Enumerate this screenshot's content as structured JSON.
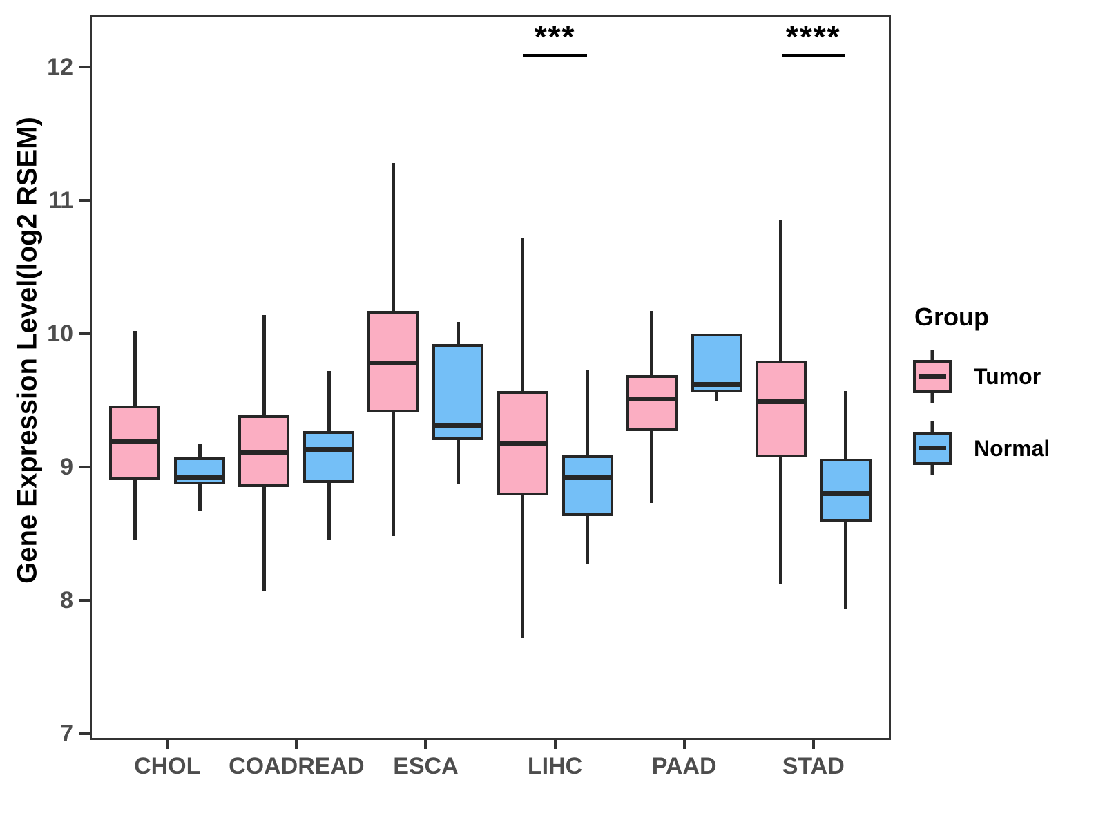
{
  "chart_data": {
    "type": "boxplot",
    "title": "",
    "xlabel": "",
    "ylabel": "Gene Expression Level(log2 RSEM)",
    "categories": [
      "CHOL",
      "COADREAD",
      "ESCA",
      "LIHC",
      "PAAD",
      "STAD"
    ],
    "y_ticks": [
      7,
      8,
      9,
      10,
      11,
      12
    ],
    "ylim": [
      6.95,
      12.39
    ],
    "grid": "off",
    "legend": {
      "title": "Group",
      "position": "right",
      "items": [
        {
          "label": "Tumor",
          "color": "#FBAEC2"
        },
        {
          "label": "Normal",
          "color": "#74BFF7"
        }
      ]
    },
    "series": [
      {
        "name": "Tumor",
        "color": "#FBAEC2",
        "boxes": [
          {
            "category": "CHOL",
            "min": 8.45,
            "q1": 8.9,
            "median": 9.19,
            "q3": 9.46,
            "max": 10.02
          },
          {
            "category": "COADREAD",
            "min": 8.07,
            "q1": 8.85,
            "median": 9.11,
            "q3": 9.39,
            "max": 10.14
          },
          {
            "category": "ESCA",
            "min": 8.48,
            "q1": 9.41,
            "median": 9.78,
            "q3": 10.17,
            "max": 11.28
          },
          {
            "category": "LIHC",
            "min": 7.72,
            "q1": 8.79,
            "median": 9.18,
            "q3": 9.57,
            "max": 10.72
          },
          {
            "category": "PAAD",
            "min": 8.73,
            "q1": 9.27,
            "median": 9.51,
            "q3": 9.69,
            "max": 10.17
          },
          {
            "category": "STAD",
            "min": 8.12,
            "q1": 9.07,
            "median": 9.49,
            "q3": 9.8,
            "max": 10.85
          }
        ]
      },
      {
        "name": "Normal",
        "color": "#74BFF7",
        "boxes": [
          {
            "category": "CHOL",
            "min": 8.67,
            "q1": 8.87,
            "median": 8.92,
            "q3": 9.07,
            "max": 9.17
          },
          {
            "category": "COADREAD",
            "min": 8.45,
            "q1": 8.88,
            "median": 9.13,
            "q3": 9.27,
            "max": 9.72
          },
          {
            "category": "ESCA",
            "min": 8.87,
            "q1": 9.2,
            "median": 9.31,
            "q3": 9.92,
            "max": 10.09
          },
          {
            "category": "LIHC",
            "min": 8.27,
            "q1": 8.63,
            "median": 8.92,
            "q3": 9.09,
            "max": 9.73
          },
          {
            "category": "PAAD",
            "min": 9.49,
            "q1": 9.56,
            "median": 9.62,
            "q3": 10.0,
            "max": 10.0
          },
          {
            "category": "STAD",
            "min": 7.94,
            "q1": 8.59,
            "median": 8.8,
            "q3": 9.06,
            "max": 9.57
          }
        ]
      }
    ],
    "annotations": [
      {
        "category": "LIHC",
        "label": "***",
        "y": 12.1
      },
      {
        "category": "STAD",
        "label": "****",
        "y": 12.1
      }
    ]
  }
}
